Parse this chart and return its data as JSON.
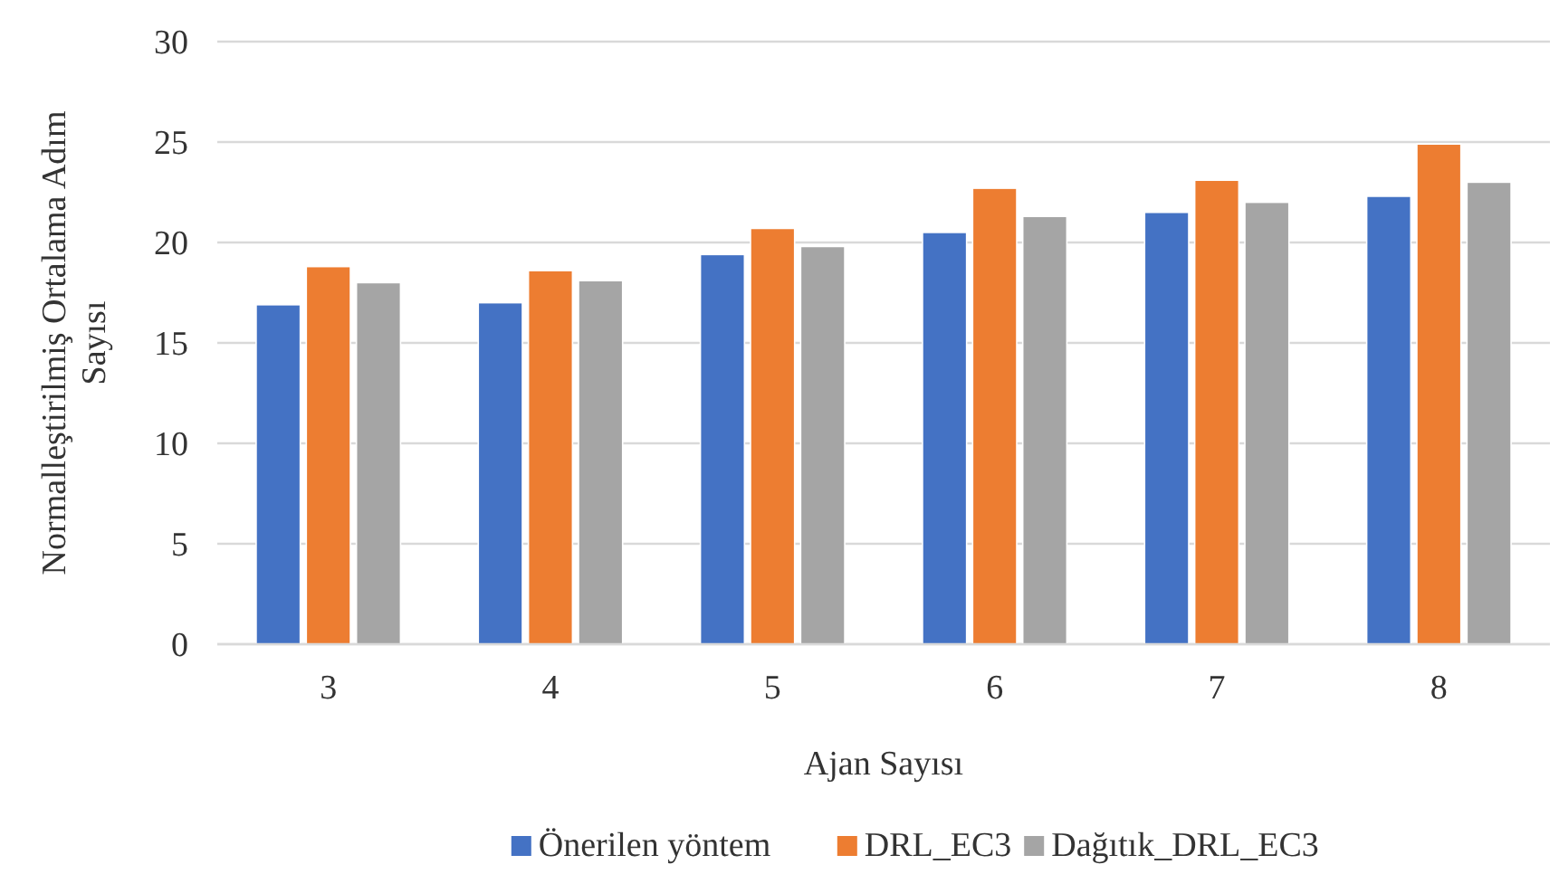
{
  "chart_data": {
    "type": "bar",
    "xlabel": "Ajan Sayısı",
    "ylabel": "Normalleştirilmiş Ortalama Adım Sayısı",
    "categories": [
      "3",
      "4",
      "5",
      "6",
      "7",
      "8"
    ],
    "series": [
      {
        "name": "Önerilen yöntem",
        "color": "#4472c4",
        "values": [
          16.9,
          17.0,
          19.4,
          20.5,
          21.5,
          22.3
        ]
      },
      {
        "name": "DRL_EC3",
        "color": "#ed7d31",
        "values": [
          18.8,
          18.6,
          20.7,
          22.7,
          23.1,
          24.9
        ]
      },
      {
        "name": "Dağıtık_DRL_EC3",
        "color": "#a5a5a5",
        "values": [
          18.0,
          18.1,
          19.8,
          21.3,
          22.0,
          23.0
        ]
      }
    ],
    "ylim": [
      0,
      30
    ],
    "yticks": [
      0,
      5,
      10,
      15,
      20,
      25,
      30
    ],
    "grid": "y",
    "legend": "bottom"
  }
}
